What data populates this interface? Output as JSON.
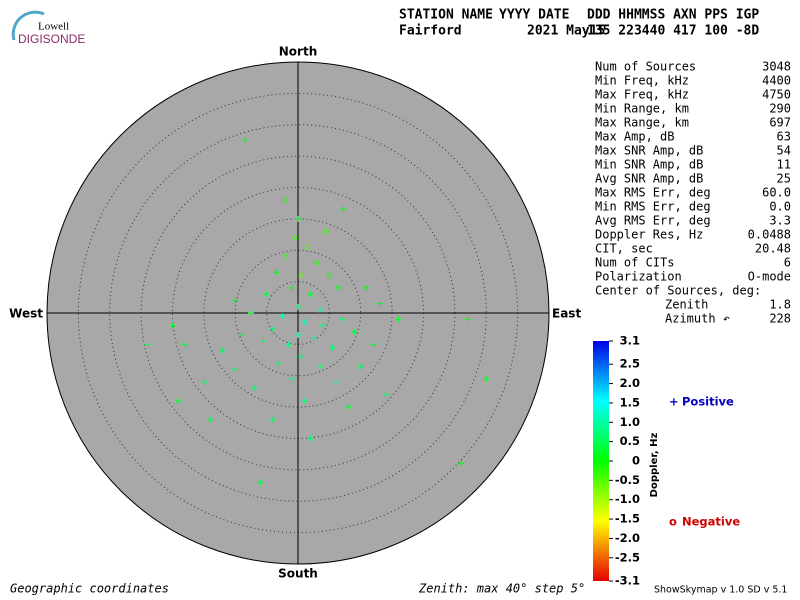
{
  "header": {
    "logo_top": "Lowell",
    "logo_bottom": "DIGISONDE",
    "columns": [
      "STATION NAME",
      "YYYY DATE",
      "DDD HHMMSS AXN PPS IGP"
    ],
    "values": [
      "Fairford",
      "2021 May15",
      "135 223440 417 100 -8D"
    ]
  },
  "directions": {
    "north": "North",
    "south": "South",
    "east": "East",
    "west": "West"
  },
  "stats": [
    [
      "Num of Sources",
      "3048"
    ],
    [
      "Min Freq, kHz",
      "4400"
    ],
    [
      "Max Freq, kHz",
      "4750"
    ],
    [
      "Min Range, km",
      "290"
    ],
    [
      "Max Range, km",
      "697"
    ],
    [
      "Max Amp, dB",
      "63"
    ],
    [
      "Max SNR Amp, dB",
      "54"
    ],
    [
      "Min SNR Amp, dB",
      "11"
    ],
    [
      "Avg SNR Amp, dB",
      "25"
    ],
    [
      "Max RMS Err, deg",
      "60.0"
    ],
    [
      "Min RMS Err, deg",
      "0.0"
    ],
    [
      "Avg RMS Err, deg",
      "3.3"
    ],
    [
      "Doppler Res, Hz",
      "0.0488"
    ],
    [
      "CIT, sec",
      "20.48"
    ],
    [
      "Num of CITs",
      "6"
    ],
    [
      "Polarization",
      "O-mode"
    ]
  ],
  "center": {
    "title": "Center of Sources, deg:",
    "rows": [
      [
        "Zenith",
        "1.8"
      ],
      [
        "Azimuth ↶",
        "228"
      ]
    ]
  },
  "colorbar": {
    "title": "Doppler, Hz",
    "lim": [
      -3.1,
      3.1
    ],
    "ticks": [
      3.1,
      2.5,
      {
        "value": 2,
        "label": "2.0"
      },
      1.5,
      {
        "value": 1,
        "label": "1.0"
      },
      0.5,
      0,
      -0.5,
      {
        "value": -1,
        "label": "-1.0"
      },
      -1.5,
      {
        "value": -2,
        "label": "-2.0"
      },
      -2.5,
      -3.1
    ]
  },
  "legend": {
    "positive_symbol": "+",
    "positive": "Positive",
    "negative_symbol": "o",
    "negative": "Negative"
  },
  "footer": {
    "left": "Geographic coordinates",
    "middle": "Zenith: max 40°  step 5°",
    "right": "ShowSkymap v 1.0  SD v 5.1"
  },
  "chart_data": {
    "type": "scatter",
    "rlim": [
      0,
      40
    ],
    "rticks": [
      5,
      10,
      15,
      20,
      25,
      30,
      35
    ],
    "x": [
      -8.4,
      0.0,
      7.2,
      -0.5,
      1.5,
      -2.0,
      3.0,
      -3.5,
      0.5,
      5.0,
      -1.0,
      2.0,
      6.5,
      -5.0,
      0.0,
      3.5,
      -2.5,
      1.0,
      4.0,
      -4.0,
      7.0,
      -7.5,
      0.0,
      2.5,
      -1.5,
      5.5,
      -5.5,
      9.0,
      -9.0,
      0.5,
      -3.0,
      3.5,
      -12.0,
      12.0,
      -18.0,
      16.0,
      27.0,
      -20.0,
      -24.0,
      -15.0,
      -19.0,
      -14.0,
      2.0,
      -4.0,
      8.0,
      14.0,
      30.0,
      26.0,
      -6.0,
      1.0,
      -7.0,
      6.0,
      -10.0,
      10.0,
      -1.0,
      11.0,
      -10.0,
      13.0,
      -2.0,
      4.5
    ],
    "values": [
      27.6,
      15.0,
      16.6,
      12.0,
      10.5,
      9.0,
      8.0,
      6.5,
      6.0,
      6.0,
      4.0,
      3.0,
      4.0,
      3.0,
      1.0,
      0.5,
      -0.5,
      -1.5,
      -2.0,
      -2.5,
      -1.0,
      0.0,
      -3.5,
      -4.0,
      -5.0,
      -5.5,
      -4.5,
      -3.0,
      -3.5,
      -7.0,
      -8.0,
      -8.5,
      -6.0,
      -5.0,
      -5.0,
      -1.0,
      -1.0,
      -2.0,
      -5.0,
      -11.0,
      -14.0,
      -17.0,
      -20.0,
      -17.0,
      -15.0,
      -13.0,
      -10.5,
      -24.0,
      -27.0,
      -14.0,
      -12.0,
      -11.0,
      -9.0,
      -8.5,
      -10.5,
      4.0,
      2.0,
      1.5,
      18.0,
      13.0
    ],
    "doppler": [
      0.3,
      0.2,
      0.0,
      -0.4,
      -0.5,
      -0.3,
      -0.2,
      0.0,
      -0.6,
      -0.1,
      0.1,
      0.3,
      0.2,
      0.4,
      0.6,
      0.9,
      1.0,
      1.2,
      0.8,
      0.7,
      0.5,
      0.3,
      1.1,
      0.9,
      0.8,
      0.7,
      0.6,
      0.4,
      0.5,
      0.7,
      0.6,
      0.6,
      0.5,
      0.3,
      0.4,
      0.2,
      0.1,
      0.3,
      0.5,
      0.6,
      0.4,
      0.5,
      0.6,
      0.5,
      0.4,
      0.5,
      0.2,
      0.1,
      0.4,
      0.7,
      0.6,
      0.7,
      0.6,
      0.5,
      0.8,
      0.0,
      0.2,
      0.1,
      -0.2,
      -0.3
    ]
  }
}
